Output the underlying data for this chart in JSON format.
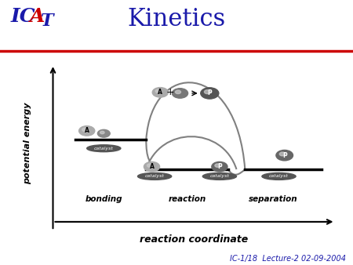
{
  "title": "Kinetics",
  "title_color": "#1a1aaa",
  "title_fontsize": 22,
  "xlabel": "reaction coordinate",
  "ylabel": "potential energy",
  "footer": "IC-1/18  Lecture-2 02-09-2004",
  "bg_color": "#f0f0f0",
  "header_bg": "#ffffff",
  "red_line_color": "#cc0000",
  "blue_logo_color": "#1a1aaa",
  "red_logo_color": "#cc0000"
}
